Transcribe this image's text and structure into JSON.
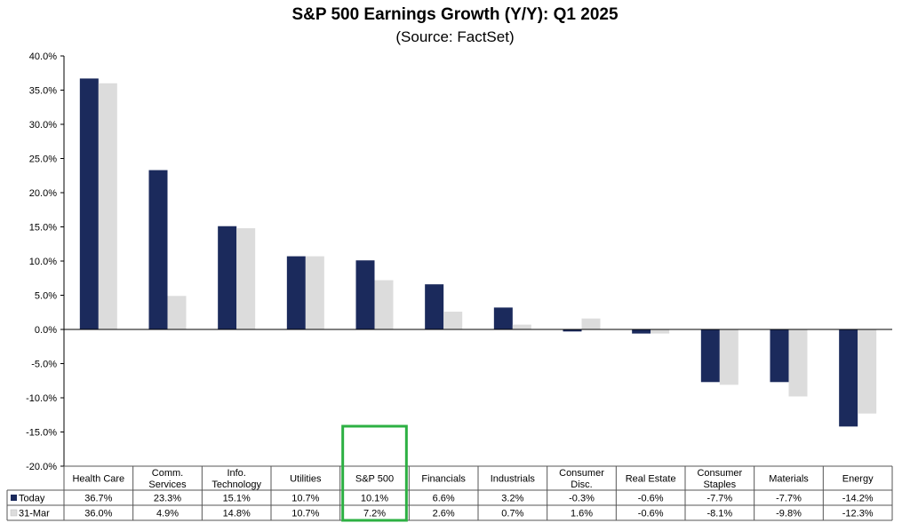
{
  "chart_data": {
    "type": "bar",
    "title": "S&P 500 Earnings Growth (Y/Y): Q1 2025",
    "subtitle": "(Source: FactSet)",
    "categories": [
      [
        "Health Care"
      ],
      [
        "Comm.",
        "Services"
      ],
      [
        "Info.",
        "Technology"
      ],
      [
        "Utilities"
      ],
      [
        "S&P 500"
      ],
      [
        "Financials"
      ],
      [
        "Industrials"
      ],
      [
        "Consumer",
        "Disc."
      ],
      [
        "Real Estate"
      ],
      [
        "Consumer",
        "Staples"
      ],
      [
        "Materials"
      ],
      [
        "Energy"
      ]
    ],
    "series": [
      {
        "name": "Today",
        "color": "#1b2a5c",
        "values": [
          36.7,
          23.3,
          15.1,
          10.7,
          10.1,
          6.6,
          3.2,
          -0.3,
          -0.6,
          -7.7,
          -7.7,
          -14.2
        ],
        "labels": [
          "36.7%",
          "23.3%",
          "15.1%",
          "10.7%",
          "10.1%",
          "6.6%",
          "3.2%",
          "-0.3%",
          "-0.6%",
          "-7.7%",
          "-7.7%",
          "-14.2%"
        ]
      },
      {
        "name": "31-Mar",
        "color": "#dcdcdc",
        "values": [
          36.0,
          4.9,
          14.8,
          10.7,
          7.2,
          2.6,
          0.7,
          1.6,
          -0.6,
          -8.1,
          -9.8,
          -12.3
        ],
        "labels": [
          "36.0%",
          "4.9%",
          "14.8%",
          "10.7%",
          "7.2%",
          "2.6%",
          "0.7%",
          "1.6%",
          "-0.6%",
          "-8.1%",
          "-9.8%",
          "-12.3%"
        ]
      }
    ],
    "y_ticks": [
      "40.0%",
      "35.0%",
      "30.0%",
      "25.0%",
      "20.0%",
      "15.0%",
      "10.0%",
      "5.0%",
      "0.0%",
      "-5.0%",
      "-10.0%",
      "-15.0%",
      "-20.0%"
    ],
    "ylim": [
      -20,
      40
    ],
    "highlight_category_index": 4,
    "highlight_color": "#2db043",
    "legend_placement": "data-table-left",
    "grid": false
  }
}
